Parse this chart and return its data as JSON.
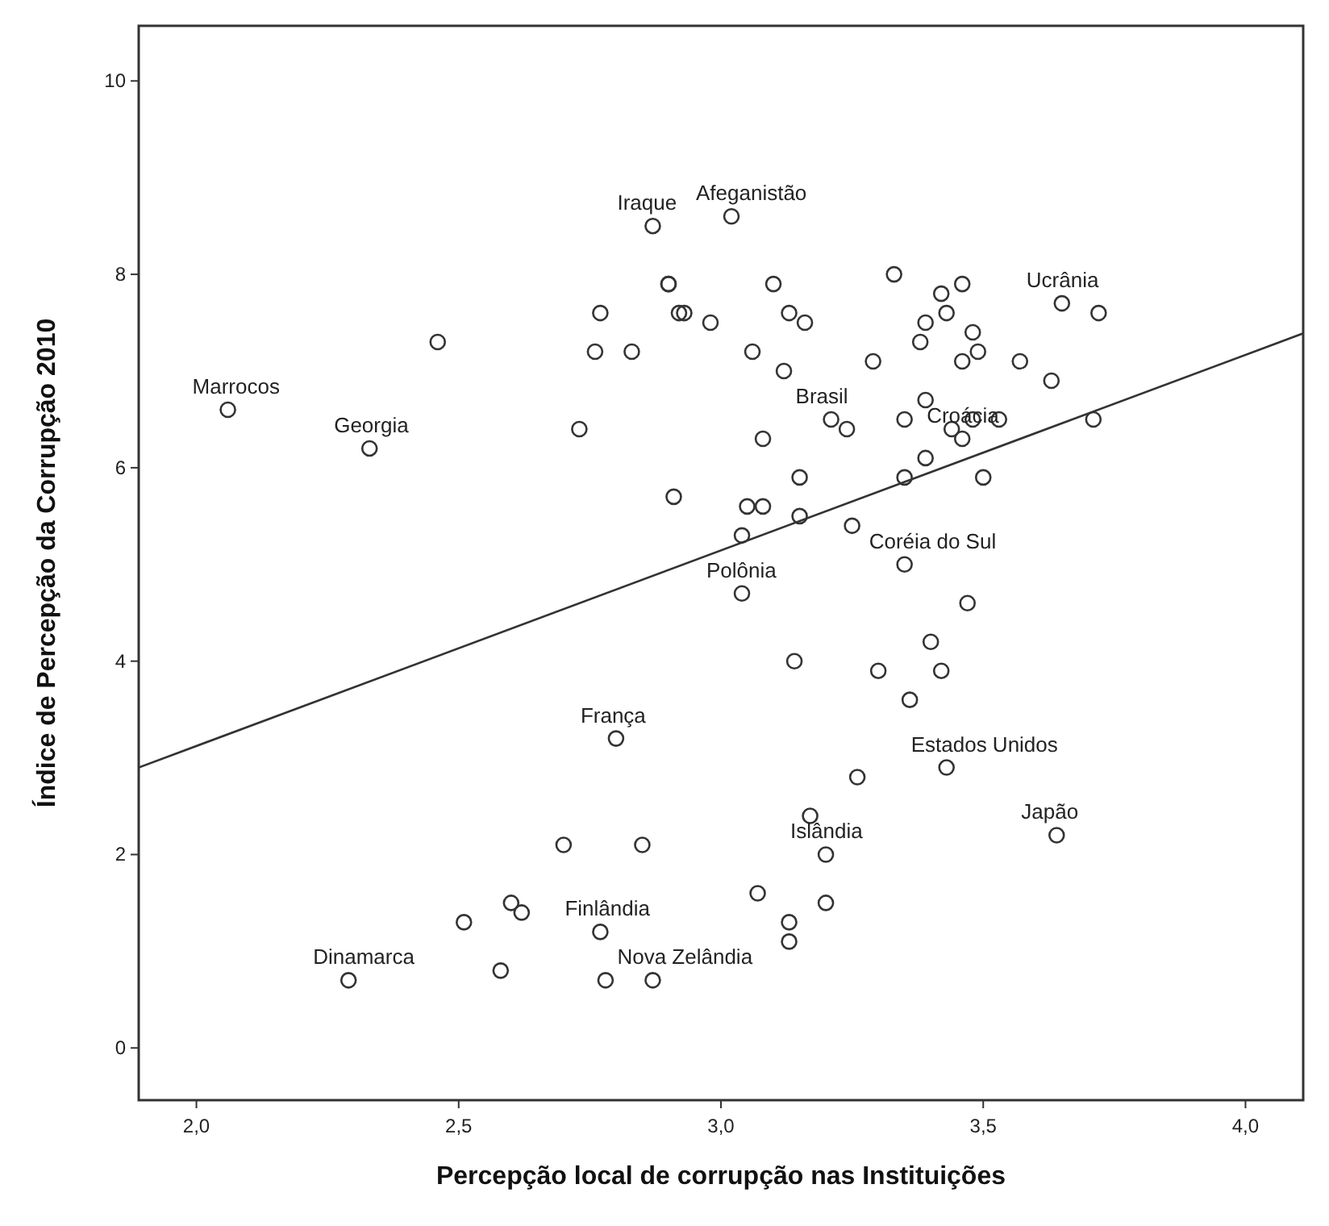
{
  "chart_data": {
    "type": "scatter",
    "xlabel": "Percepção local de corrupção nas Instituições",
    "ylabel": "Índice de Percepção da Corrupção 2010",
    "xlim": [
      1.89,
      4.11
    ],
    "ylim": [
      -0.54,
      10.57
    ],
    "xticks": [
      {
        "value": 2,
        "label": "2,0"
      },
      {
        "value": 2.5,
        "label": "2,5"
      },
      {
        "value": 3,
        "label": "3,0"
      },
      {
        "value": 3.5,
        "label": "3,5"
      },
      {
        "value": 4,
        "label": "4,0"
      }
    ],
    "yticks": [
      0,
      2,
      4,
      6,
      8,
      10
    ],
    "grid": false,
    "series": [
      {
        "marker": "circle",
        "color": "#333333",
        "x": [
          2.06,
          2.33,
          2.46,
          2.87,
          3.02,
          2.9,
          2.9,
          2.77,
          2.76,
          2.83,
          2.73,
          2.92,
          2.93,
          2.98,
          3.1,
          3.13,
          3.16,
          3.06,
          3.12,
          3.33,
          3.42,
          3.46,
          3.43,
          3.39,
          3.38,
          3.48,
          3.49,
          3.46,
          3.29,
          3.57,
          3.63,
          3.65,
          3.72,
          3.71,
          3.39,
          3.35,
          3.48,
          3.53,
          3.44,
          3.24,
          3.21,
          3.08,
          3.46,
          3.39,
          3.35,
          3.5,
          3.15,
          2.91,
          3.05,
          3.08,
          3.15,
          3.25,
          3.04,
          3.35,
          3.04,
          3.47,
          3.4,
          3.14,
          3.3,
          3.42,
          3.36,
          2.8,
          3.43,
          3.26,
          3.17,
          3.64,
          2.7,
          2.85,
          3.2,
          3.07,
          2.6,
          2.62,
          2.51,
          3.13,
          3.2,
          3.13,
          2.77,
          2.58,
          2.29,
          2.78,
          2.87
        ],
        "values": [
          6.6,
          6.2,
          7.3,
          8.5,
          8.6,
          7.9,
          7.9,
          7.6,
          7.2,
          7.2,
          6.4,
          7.6,
          7.6,
          7.5,
          7.9,
          7.6,
          7.5,
          7.2,
          7.0,
          8.0,
          7.8,
          7.9,
          7.6,
          7.5,
          7.3,
          7.4,
          7.2,
          7.1,
          7.1,
          7.1,
          6.9,
          7.7,
          7.6,
          6.5,
          6.7,
          6.5,
          6.5,
          6.5,
          6.4,
          6.4,
          6.5,
          6.3,
          6.3,
          6.1,
          5.9,
          5.9,
          5.9,
          5.7,
          5.6,
          5.6,
          5.5,
          5.4,
          5.3,
          5.0,
          4.7,
          4.6,
          4.2,
          4.0,
          3.9,
          3.9,
          3.6,
          3.2,
          2.9,
          2.8,
          2.4,
          2.2,
          2.1,
          2.1,
          2.0,
          1.6,
          1.5,
          1.4,
          1.3,
          1.3,
          1.5,
          1.1,
          1.2,
          0.8,
          0.7,
          0.7,
          0.7
        ]
      },
      {
        "type": "line",
        "color": "#333333",
        "line_style": "solid",
        "x": [
          1.89,
          4.11
        ],
        "values": [
          2.9,
          7.39
        ]
      }
    ],
    "annotations": [
      {
        "text": "Marrocos",
        "x": 2.06,
        "y": 6.6
      },
      {
        "text": "Georgia",
        "x": 2.33,
        "y": 6.2
      },
      {
        "text": "Iraque",
        "x": 2.87,
        "y": 8.5
      },
      {
        "text": "Afeganistão",
        "x": 3.02,
        "y": 8.6
      },
      {
        "text": "Ucrânia",
        "x": 3.65,
        "y": 7.7
      },
      {
        "text": "Brasil",
        "x": 3.21,
        "y": 6.5
      },
      {
        "text": "Croácia",
        "x": 3.46,
        "y": 6.3
      },
      {
        "text": "Polônia",
        "x": 3.04,
        "y": 4.7
      },
      {
        "text": "Coréia do Sul",
        "x": 3.35,
        "y": 5.0
      },
      {
        "text": "França",
        "x": 2.8,
        "y": 3.2
      },
      {
        "text": "Estados Unidos",
        "x": 3.43,
        "y": 2.9
      },
      {
        "text": "Japão",
        "x": 3.64,
        "y": 2.2
      },
      {
        "text": "Islândia",
        "x": 3.2,
        "y": 2.0
      },
      {
        "text": "Dinamarca",
        "x": 2.29,
        "y": 0.7
      },
      {
        "text": "Finlândia",
        "x": 2.77,
        "y": 1.2
      },
      {
        "text": "Nova Zelândia",
        "x": 2.87,
        "y": 0.7
      }
    ]
  }
}
